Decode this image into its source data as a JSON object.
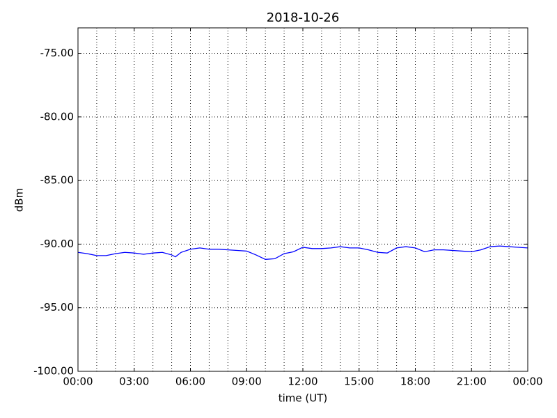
{
  "chart_data": {
    "type": "line",
    "title": "2018-10-26",
    "xlabel": "time (UT)",
    "ylabel": "dBm",
    "x": [
      0,
      0.5,
      1,
      1.5,
      2,
      2.5,
      3,
      3.5,
      4,
      4.5,
      5,
      5.2,
      5.5,
      6,
      6.5,
      7,
      7.5,
      8,
      8.5,
      9,
      9.5,
      10,
      10.5,
      11,
      11.5,
      12,
      12.5,
      13,
      13.5,
      14,
      14.5,
      15,
      15.5,
      16,
      16.5,
      17,
      17.5,
      18,
      18.5,
      19,
      19.5,
      20,
      20.5,
      21,
      21.5,
      22,
      22.5,
      23,
      23.5,
      24
    ],
    "series": [
      {
        "color": "#0000ff",
        "values": [
          -90.65,
          -90.75,
          -90.9,
          -90.9,
          -90.75,
          -90.65,
          -90.7,
          -90.8,
          -90.7,
          -90.65,
          -90.85,
          -91.0,
          -90.65,
          -90.4,
          -90.3,
          -90.4,
          -90.4,
          -90.45,
          -90.5,
          -90.55,
          -90.85,
          -91.2,
          -91.15,
          -90.75,
          -90.6,
          -90.25,
          -90.35,
          -90.35,
          -90.3,
          -90.2,
          -90.3,
          -90.3,
          -90.45,
          -90.65,
          -90.7,
          -90.3,
          -90.2,
          -90.3,
          -90.6,
          -90.45,
          -90.45,
          -90.5,
          -90.55,
          -90.6,
          -90.45,
          -90.2,
          -90.15,
          -90.2,
          -90.25,
          -90.3
        ]
      }
    ],
    "xlim": [
      0,
      24
    ],
    "xticks": [
      {
        "value": 0,
        "label": "00:00"
      },
      {
        "value": 3,
        "label": "03:00"
      },
      {
        "value": 6,
        "label": "06:00"
      },
      {
        "value": 9,
        "label": "09:00"
      },
      {
        "value": 12,
        "label": "12:00"
      },
      {
        "value": 15,
        "label": "15:00"
      },
      {
        "value": 18,
        "label": "18:00"
      },
      {
        "value": 21,
        "label": "21:00"
      },
      {
        "value": 24,
        "label": "00:00"
      }
    ],
    "xminorticks": [
      1,
      2,
      4,
      5,
      7,
      8,
      10,
      11,
      13,
      14,
      16,
      17,
      19,
      20,
      22,
      23
    ],
    "ylim": [
      -100,
      -73
    ],
    "yticks": [
      {
        "value": -100,
        "label": "-100.00"
      },
      {
        "value": -95,
        "label": "-95.00"
      },
      {
        "value": -90,
        "label": "-90.00"
      },
      {
        "value": -85,
        "label": "-85.00"
      },
      {
        "value": -80,
        "label": "-80.00"
      },
      {
        "value": -75,
        "label": "-75.00"
      }
    ],
    "grid": true
  }
}
